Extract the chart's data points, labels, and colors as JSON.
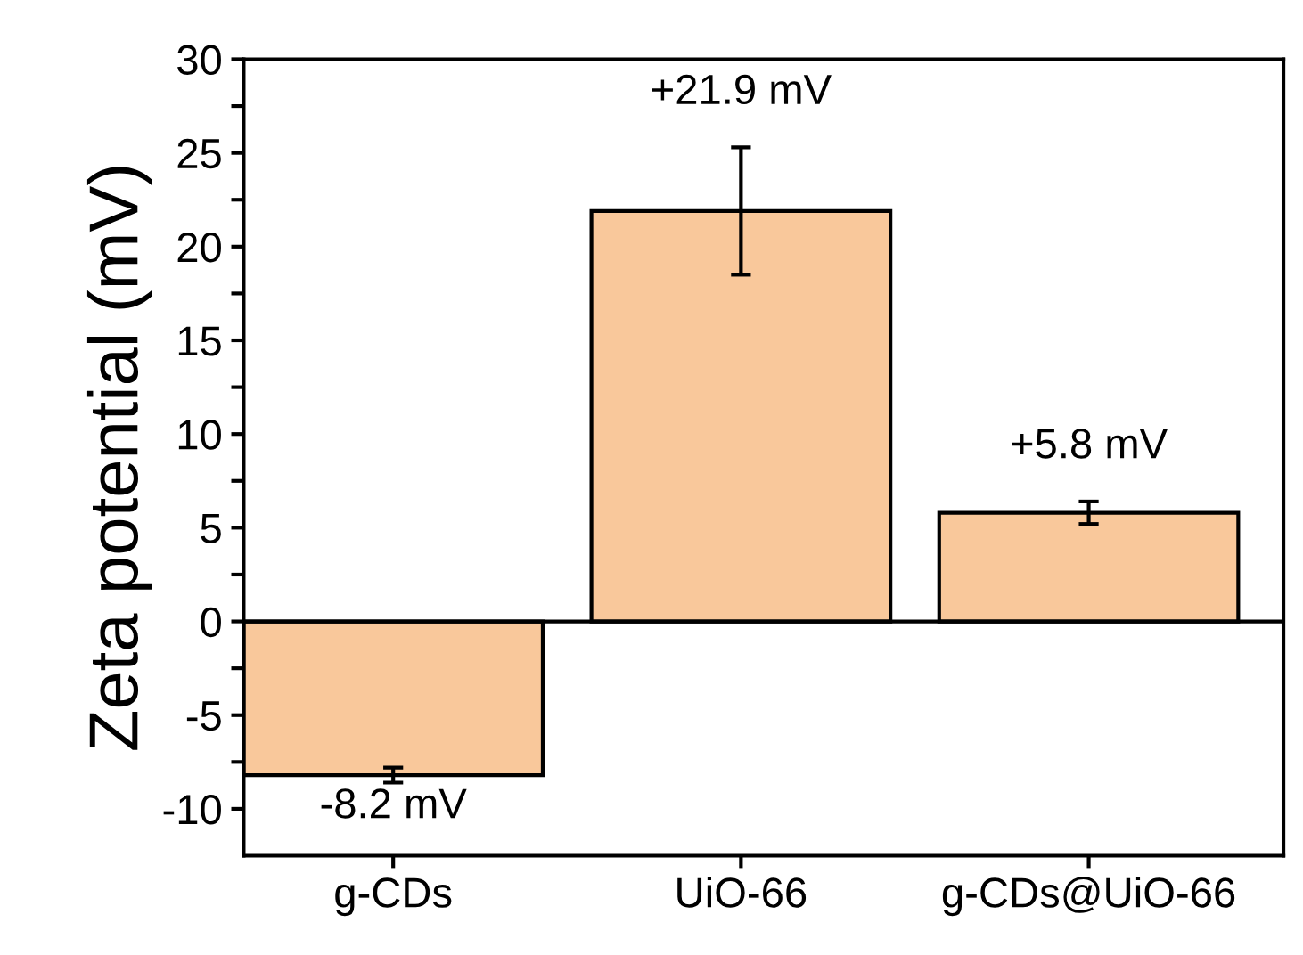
{
  "chart_data": {
    "type": "bar",
    "ylabel": "Zeta potential (mV)",
    "categories": [
      "g-CDs",
      "UiO-66",
      "g-CDs@UiO-66"
    ],
    "values": [
      -8.2,
      21.9,
      5.8
    ],
    "errors": [
      0.4,
      3.4,
      0.6
    ],
    "value_labels": [
      "-8.2 mV",
      "+21.9 mV",
      "+5.8 mV"
    ],
    "color": "#f9c89b",
    "ylim": [
      -12.5,
      30
    ],
    "yticks": [
      -10,
      {
        "value": -7.5,
        "label": null
      },
      -5,
      {
        "value": -2.5,
        "label": null
      },
      0,
      {
        "value": 2.5,
        "label": null
      },
      5,
      {
        "value": 7.5,
        "label": null
      },
      10,
      {
        "value": 12.5,
        "label": null
      },
      15,
      {
        "value": 17.5,
        "label": null
      },
      20,
      {
        "value": 22.5,
        "label": null
      },
      25,
      {
        "value": 27.5,
        "label": null
      },
      30
    ],
    "ref_lines": [
      {
        "axis": "y",
        "value": 0,
        "color": "#000000"
      }
    ],
    "grid": false,
    "legend": false
  }
}
